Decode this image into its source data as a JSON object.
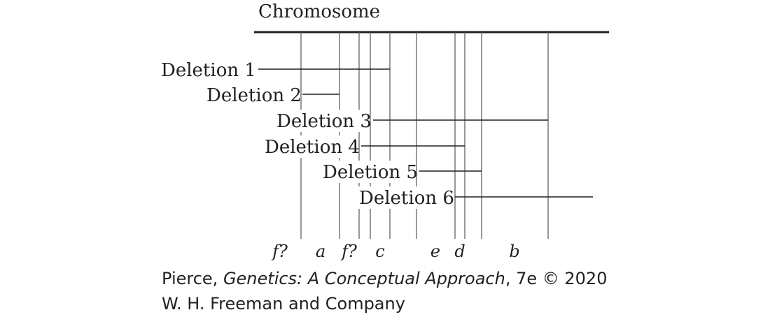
{
  "chromosome": {
    "label": "Chromosome"
  },
  "deletions": [
    {
      "id": "1",
      "label": "Deletion 1"
    },
    {
      "id": "2",
      "label": "Deletion 2"
    },
    {
      "id": "3",
      "label": "Deletion 3"
    },
    {
      "id": "4",
      "label": "Deletion 4"
    },
    {
      "id": "5",
      "label": "Deletion 5"
    },
    {
      "id": "6",
      "label": "Deletion 6"
    }
  ],
  "genes": [
    {
      "id": "f1",
      "label": "f?"
    },
    {
      "id": "a",
      "label": "a"
    },
    {
      "id": "f2",
      "label": "f?"
    },
    {
      "id": "c",
      "label": "c"
    },
    {
      "id": "e",
      "label": "e"
    },
    {
      "id": "d",
      "label": "d"
    },
    {
      "id": "b",
      "label": "b"
    }
  ],
  "credit": {
    "author": "Pierce, ",
    "title": "Genetics: A Conceptual Approach",
    "edition": ", 7e © 2020",
    "publisher": "W. H. Freeman and Company"
  },
  "colors": {
    "ink": "#231f20",
    "guide": "#555555"
  }
}
